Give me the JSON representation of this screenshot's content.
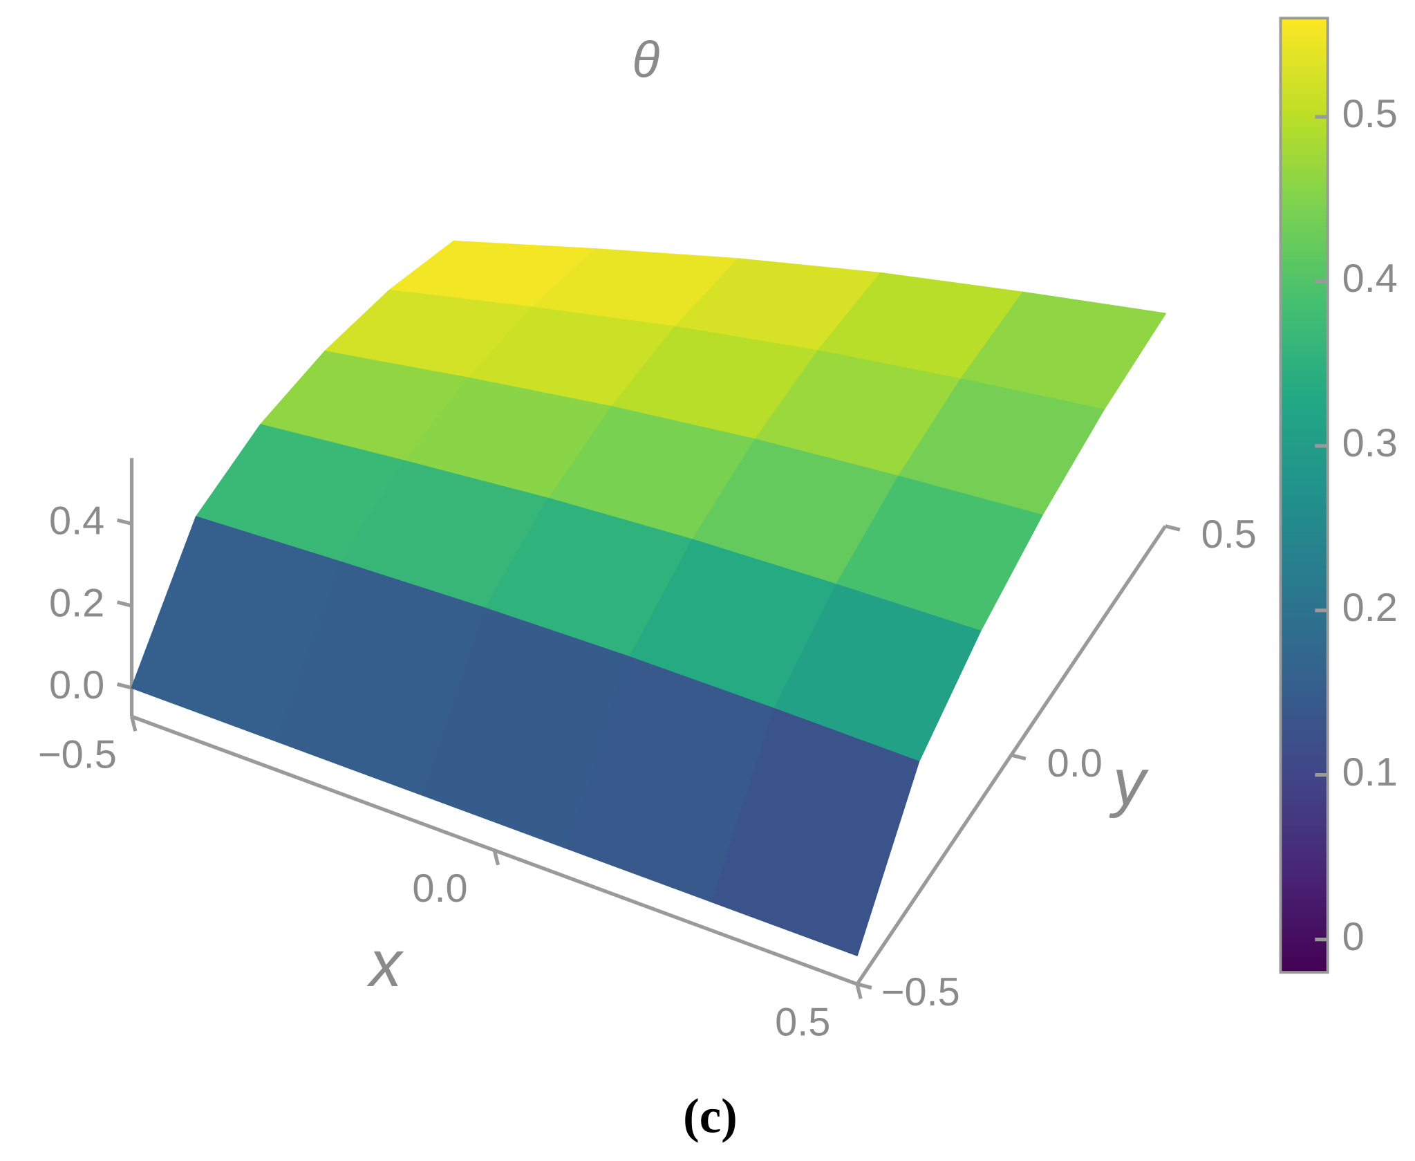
{
  "chart_data": {
    "type": "surface3d",
    "title": "θ",
    "x_label": "x",
    "y_label": "y",
    "caption": "(c)",
    "colormap": "viridis",
    "x": [
      -0.5,
      -0.3,
      -0.1,
      0.1,
      0.3,
      0.5
    ],
    "y": [
      -0.5,
      -0.3,
      -0.1,
      0.1,
      0.3,
      0.5
    ],
    "z": [
      [
        0,
        0.311,
        0.43,
        0.503,
        0.546,
        0.56
      ],
      [
        0,
        0.308,
        0.425,
        0.498,
        0.541,
        0.554
      ],
      [
        0,
        0.302,
        0.417,
        0.488,
        0.53,
        0.543
      ],
      [
        0,
        0.29,
        0.4,
        0.468,
        0.508,
        0.521
      ],
      [
        0,
        0.271,
        0.374,
        0.438,
        0.475,
        0.487
      ],
      [
        0,
        0.249,
        0.344,
        0.403,
        0.437,
        0.448
      ]
    ],
    "xlim": [
      -0.5,
      0.5
    ],
    "ylim": [
      -0.5,
      0.5
    ],
    "zlim": [
      -0.07,
      0.56
    ],
    "xticks": [
      {
        "value": -0.5,
        "label": "−0.5"
      },
      {
        "value": 0,
        "label": "0.0"
      },
      0.5
    ],
    "yticks": [
      {
        "value": -0.5,
        "label": "−0.5"
      },
      {
        "value": 0,
        "label": "0.0"
      },
      0.5
    ],
    "zticks": [
      {
        "value": 0,
        "label": "0.0"
      },
      0.2,
      0.4
    ],
    "colorbar_lim": [
      -0.02,
      0.56
    ],
    "colorbar_ticks": [
      0,
      0.1,
      0.2,
      0.3,
      0.4,
      0.5
    ]
  }
}
